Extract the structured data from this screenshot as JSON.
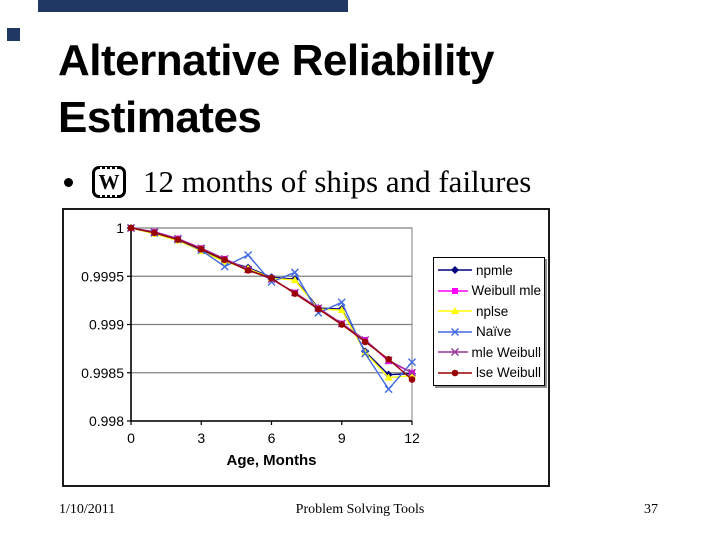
{
  "slide": {
    "decor": {
      "bar_color": "#1F3864"
    },
    "title_lines": [
      "Alternative Reliability",
      "Estimates"
    ],
    "bullet": {
      "marker": "•",
      "icon": "weibull-software-icon",
      "icon_letter": "W",
      "text": "12 months of ships and failures"
    },
    "footer": {
      "date": "1/10/2011",
      "center": "Problem Solving Tools",
      "page": "37"
    }
  },
  "chart_data": {
    "type": "line",
    "title": "",
    "xlabel": "Age, Months",
    "ylabel": "",
    "xlim": [
      0,
      12
    ],
    "ylim": [
      0.998,
      1.0
    ],
    "x_ticks": [
      0,
      3,
      6,
      9,
      12
    ],
    "y_tick_values": [
      1,
      0.9995,
      0.999,
      0.9985,
      0.998
    ],
    "y_tick_labels": [
      "1",
      "0.9995",
      "0.999",
      "0.9985",
      "0.998"
    ],
    "grid": true,
    "grid_color": "#808080",
    "legend_position": "right",
    "x": [
      0,
      1,
      2,
      3,
      4,
      5,
      6,
      7,
      8,
      9,
      10,
      11,
      12
    ],
    "series": [
      {
        "name": "npmle",
        "color": "#000080",
        "marker": "diamond",
        "values": [
          1,
          0.99995,
          0.99988,
          0.99977,
          0.99966,
          0.99959,
          0.99949,
          0.99947,
          0.99917,
          0.99916,
          0.99872,
          0.99848,
          0.99849
        ]
      },
      {
        "name": "Weibull mle",
        "color": "#FF00FF",
        "marker": "square",
        "values": [
          1,
          0.99996,
          0.99989,
          0.99979,
          0.99968,
          0.99957,
          0.99947,
          0.99933,
          0.99917,
          0.99901,
          0.99884,
          0.99862,
          0.9985
        ]
      },
      {
        "name": "nplse",
        "color": "#FFFF00",
        "marker": "triangle",
        "values": [
          1,
          0.99994,
          0.99987,
          0.99976,
          0.99965,
          0.99958,
          0.99948,
          0.99946,
          0.99916,
          0.99915,
          0.99871,
          0.99845,
          0.99847
        ]
      },
      {
        "name": "Naïve",
        "color": "#4169E1",
        "marker": "x",
        "values": [
          1,
          0.99995,
          0.99988,
          0.99977,
          0.9996,
          0.99972,
          0.99944,
          0.99954,
          0.99912,
          0.99923,
          0.9987,
          0.99833,
          0.99861
        ]
      },
      {
        "name": "mle Weibull",
        "color": "#993399",
        "marker": "x",
        "values": [
          1,
          0.99996,
          0.99989,
          0.99979,
          0.99968,
          0.99957,
          0.99947,
          0.99933,
          0.99917,
          0.99901,
          0.99884,
          0.99863,
          0.9985
        ]
      },
      {
        "name": "lse Weibull",
        "color": "#990000",
        "marker": "circle",
        "values": [
          1,
          0.99995,
          0.99988,
          0.99978,
          0.99967,
          0.99956,
          0.99948,
          0.99932,
          0.99916,
          0.999,
          0.99882,
          0.99864,
          0.99843
        ]
      }
    ]
  }
}
